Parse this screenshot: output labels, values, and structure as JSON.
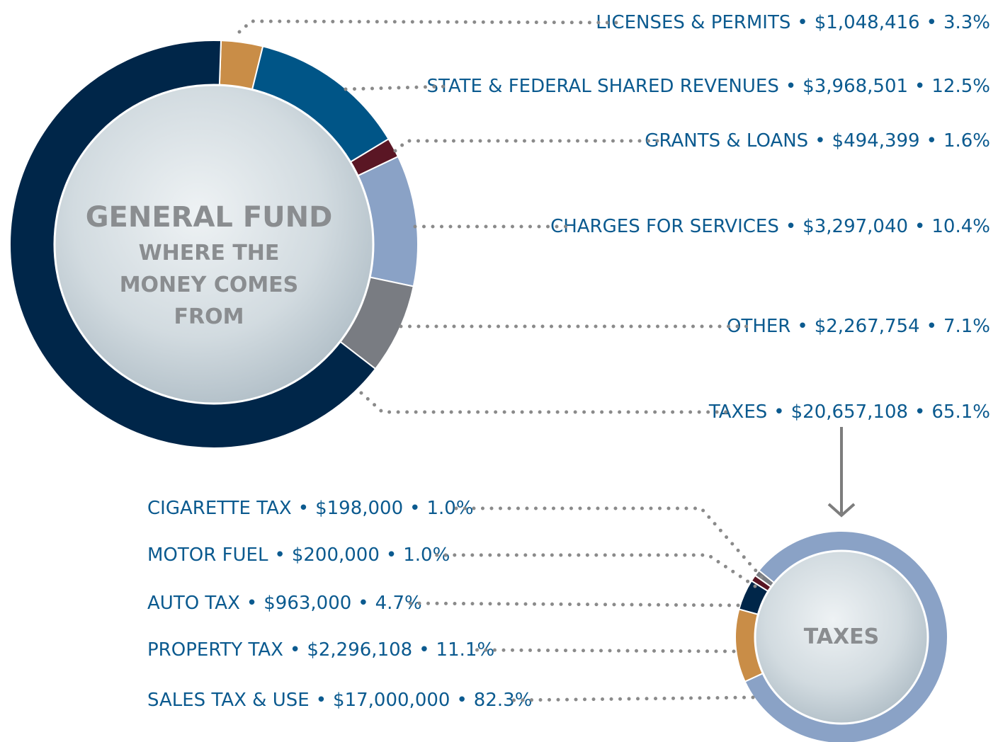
{
  "chart_data": [
    {
      "type": "donut",
      "title": "GENERAL FUND",
      "subtitle": "WHERE THE MONEY COMES FROM",
      "separator": "•",
      "categories": [
        "LICENSES & PERMITS",
        "STATE & FEDERAL SHARED REVENUES",
        "GRANTS & LOANS",
        "CHARGES FOR SERVICES",
        "OTHER",
        "TAXES"
      ],
      "values": [
        1048416,
        3968501,
        494399,
        3297040,
        2267754,
        20657108
      ],
      "value_labels": [
        "$1,048,416",
        "$3,968,501",
        "$494,399",
        "$3,297,040",
        "$2,267,754",
        "$20,657,108"
      ],
      "percents": [
        3.3,
        12.5,
        1.6,
        10.4,
        7.1,
        65.1
      ],
      "percent_labels": [
        "3.3%",
        "12.5%",
        "1.6%",
        "10.4%",
        "7.1%",
        "65.1%"
      ],
      "colors": [
        "#c98d47",
        "#005587",
        "#5a1624",
        "#8aa2c6",
        "#797c82",
        "#002649"
      ]
    },
    {
      "type": "donut",
      "title": "TAXES",
      "separator": "•",
      "categories": [
        "CIGARETTE TAX",
        "MOTOR FUEL",
        "AUTO TAX",
        "PROPERTY TAX",
        "SALES TAX & USE"
      ],
      "values": [
        198000,
        200000,
        963000,
        2296108,
        17000000
      ],
      "value_labels": [
        "$198,000",
        "$200,000",
        "$963,000",
        "$2,296,108",
        "$17,000,000"
      ],
      "percents": [
        1.0,
        1.0,
        4.7,
        11.1,
        82.3
      ],
      "percent_labels": [
        "1.0%",
        "1.0%",
        "4.7%",
        "11.1%",
        "82.3%"
      ],
      "colors": [
        "#797c82",
        "#5a1624",
        "#002649",
        "#c98d47",
        "#8aa2c6"
      ]
    }
  ]
}
